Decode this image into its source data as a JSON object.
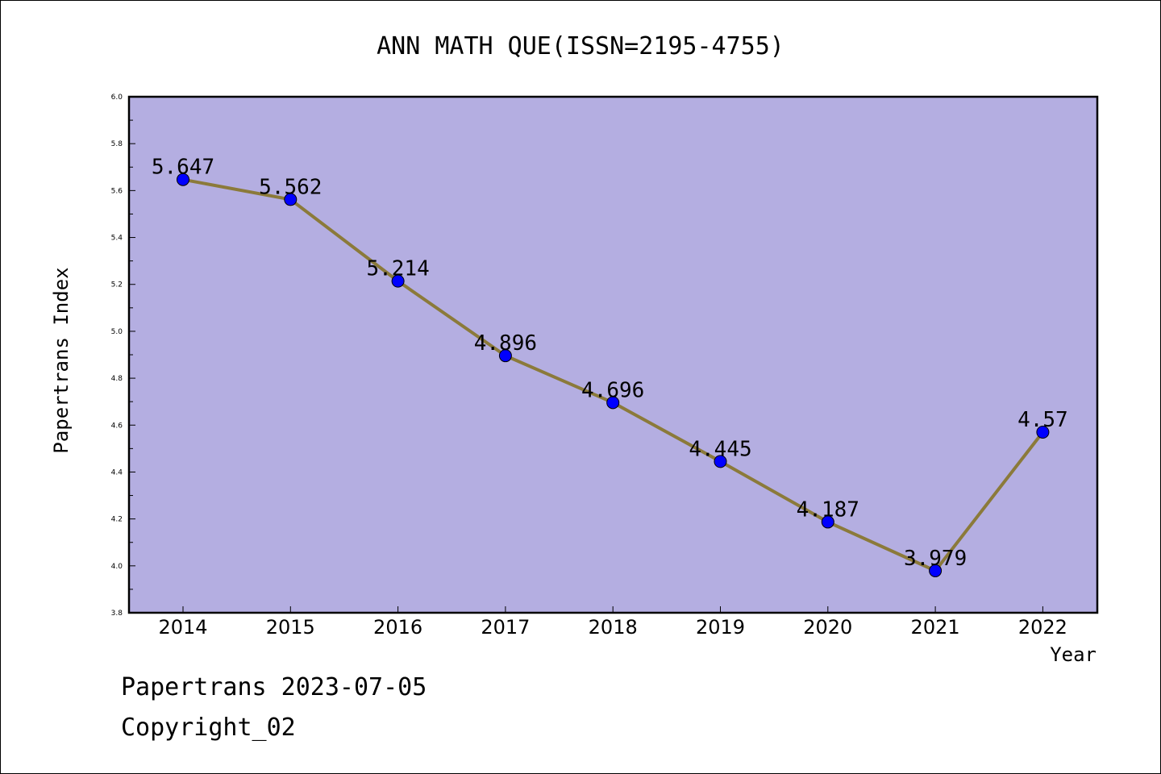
{
  "chart_data": {
    "type": "line",
    "title": "ANN MATH QUE(ISSN=2195-4755)",
    "xlabel": "Year",
    "ylabel": "Papertrans Index",
    "categories": [
      "2014",
      "2015",
      "2016",
      "2017",
      "2018",
      "2019",
      "2020",
      "2021",
      "2022"
    ],
    "series": [
      {
        "values": [
          5.647,
          5.562,
          5.214,
          4.896,
          4.696,
          4.445,
          4.187,
          3.979,
          4.57
        ],
        "labels": [
          "5.647",
          "5.562",
          "5.214",
          "4.896",
          "4.696",
          "4.445",
          "4.187",
          "3.979",
          "4.57"
        ]
      }
    ],
    "ylim": [
      3.8,
      6.0
    ],
    "yticks": [
      "3.8",
      "4.0",
      "4.2",
      "4.4",
      "4.6",
      "4.8",
      "5.0",
      "5.2",
      "5.4",
      "5.6",
      "5.8",
      "6.0"
    ],
    "grid": false,
    "colors": {
      "plot_background": "#b4aee1",
      "line": "#8b7a3a",
      "marker": "#0000ff"
    }
  },
  "footer": {
    "line1": "Papertrans 2023-07-05",
    "line2": "Copyright_02"
  }
}
